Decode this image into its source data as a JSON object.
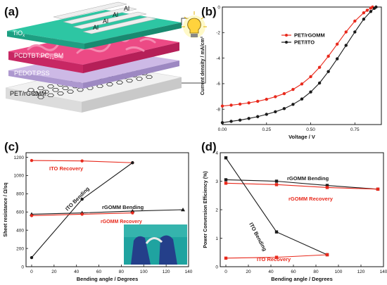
{
  "panels": {
    "a": {
      "label": "(a)",
      "layers": {
        "al": "Al",
        "tio2": "TiO",
        "tio2_sub": "x",
        "active_main": "PCDTBT:PC",
        "active_sub": "71",
        "active_tail": "BM",
        "pedot": "PEDOT:PSS",
        "substrate": "PET/rGOMM"
      }
    },
    "b": {
      "label": "(b)"
    },
    "c": {
      "label": "(c)"
    },
    "d": {
      "label": "(d)"
    }
  },
  "colors": {
    "black": "#1a1a1a",
    "red": "#e8291c",
    "tio2": "#2bbf9e",
    "active": "#e83a7a",
    "pedot": "#c5b1e0"
  },
  "chart_data": [
    {
      "panel": "b",
      "type": "line",
      "xlabel": "Voltage / V",
      "ylabel": "Current density / mA/cm²",
      "xlim": [
        0,
        0.9
      ],
      "ylim": [
        -9.2,
        0
      ],
      "xticks": [
        "0.00",
        "0.25",
        "0.50",
        "0.75"
      ],
      "xtick_values": [
        0,
        0.25,
        0.5,
        0.75
      ],
      "yticks": [
        "0",
        "-2",
        "-4",
        "-6",
        "-8"
      ],
      "ytick_values": [
        0,
        -2,
        -4,
        -6,
        -8
      ],
      "legend": "center-right",
      "series": [
        {
          "name": "PET/rGOMM",
          "color": "red",
          "x": [
            0,
            0.05,
            0.1,
            0.15,
            0.2,
            0.25,
            0.3,
            0.35,
            0.4,
            0.45,
            0.5,
            0.55,
            0.6,
            0.65,
            0.7,
            0.75,
            0.8,
            0.82,
            0.84,
            0.85
          ],
          "y": [
            -7.75,
            -7.68,
            -7.6,
            -7.5,
            -7.38,
            -7.22,
            -7.02,
            -6.78,
            -6.45,
            -6.02,
            -5.45,
            -4.72,
            -3.85,
            -2.9,
            -1.95,
            -1.1,
            -0.45,
            -0.25,
            -0.08,
            0
          ]
        },
        {
          "name": "PET/ITO",
          "color": "black",
          "x": [
            0,
            0.05,
            0.1,
            0.15,
            0.2,
            0.25,
            0.3,
            0.35,
            0.4,
            0.45,
            0.5,
            0.55,
            0.6,
            0.65,
            0.7,
            0.75,
            0.8,
            0.84,
            0.86,
            0.87
          ],
          "y": [
            -9.05,
            -8.95,
            -8.85,
            -8.72,
            -8.58,
            -8.4,
            -8.2,
            -7.95,
            -7.62,
            -7.2,
            -6.65,
            -5.95,
            -5.05,
            -4.05,
            -3.0,
            -1.95,
            -0.95,
            -0.35,
            -0.1,
            0
          ]
        }
      ]
    },
    {
      "panel": "c",
      "type": "line",
      "xlabel": "Bending angle / Degrees",
      "ylabel": "Sheet resistance / Ω/sq",
      "xlim": [
        -5,
        140
      ],
      "ylim": [
        0,
        1250
      ],
      "xticks": [
        "0",
        "20",
        "40",
        "60",
        "80",
        "100",
        "120",
        "140"
      ],
      "xtick_values": [
        0,
        20,
        40,
        60,
        80,
        100,
        120,
        140
      ],
      "yticks": [
        "0",
        "200",
        "400",
        "600",
        "800",
        "1000",
        "1200"
      ],
      "ytick_values": [
        0,
        200,
        400,
        600,
        800,
        1000,
        1200
      ],
      "series": [
        {
          "name": "ITO Recovery",
          "color": "red",
          "marker": "circle",
          "x": [
            0,
            45,
            90
          ],
          "y": [
            1165,
            1160,
            1140
          ]
        },
        {
          "name": "ITO Bending",
          "color": "black",
          "marker": "circle",
          "x": [
            0,
            45,
            90
          ],
          "y": [
            100,
            740,
            1140
          ]
        },
        {
          "name": "rGOMM Bending",
          "color": "black",
          "marker": "triangle",
          "x": [
            0,
            45,
            90,
            135
          ],
          "y": [
            575,
            590,
            610,
            625
          ]
        },
        {
          "name": "rGOMM Recovery",
          "color": "red",
          "marker": "circle",
          "x": [
            0,
            45,
            90
          ],
          "y": [
            560,
            575,
            590
          ]
        }
      ],
      "annotations": [
        {
          "text": "ITO Recovery",
          "color": "red"
        },
        {
          "text": "ITO Bending",
          "color": "black"
        },
        {
          "text": "rGOMM Bending",
          "color": "black"
        },
        {
          "text": "rGOMM Recovery",
          "color": "red"
        }
      ]
    },
    {
      "panel": "d",
      "type": "line",
      "xlabel": "Bending angle / Degrees",
      "ylabel": "Power Conversion Efficiency (%)",
      "xlim": [
        -5,
        140
      ],
      "ylim": [
        0,
        4
      ],
      "xticks": [
        "0",
        "20",
        "40",
        "60",
        "80",
        "100",
        "120",
        "140"
      ],
      "xtick_values": [
        0,
        20,
        40,
        60,
        80,
        100,
        120,
        140
      ],
      "yticks": [
        "0",
        "1",
        "2",
        "3",
        "4"
      ],
      "ytick_values": [
        0,
        1,
        2,
        3,
        4
      ],
      "series": [
        {
          "name": "rGOMM Bending",
          "color": "black",
          "marker": "square",
          "x": [
            0,
            45,
            90,
            135
          ],
          "y": [
            3.05,
            3.0,
            2.85,
            2.72
          ]
        },
        {
          "name": "rGOMM Recovery",
          "color": "red",
          "marker": "square",
          "x": [
            0,
            45,
            90,
            135
          ],
          "y": [
            2.93,
            2.88,
            2.78,
            2.72
          ]
        },
        {
          "name": "ITO Bending",
          "color": "black",
          "marker": "square",
          "x": [
            0,
            45,
            90
          ],
          "y": [
            3.82,
            1.22,
            0.42
          ]
        },
        {
          "name": "ITO Recovery",
          "color": "red",
          "marker": "square",
          "x": [
            0,
            45,
            90
          ],
          "y": [
            0.3,
            0.33,
            0.42
          ]
        }
      ],
      "annotations": [
        {
          "text": "rGOMM Bending",
          "color": "black"
        },
        {
          "text": "rGOMM Recovery",
          "color": "red"
        },
        {
          "text": "ITO Bending",
          "color": "black"
        },
        {
          "text": "ITO Recovery",
          "color": "red"
        }
      ]
    }
  ]
}
